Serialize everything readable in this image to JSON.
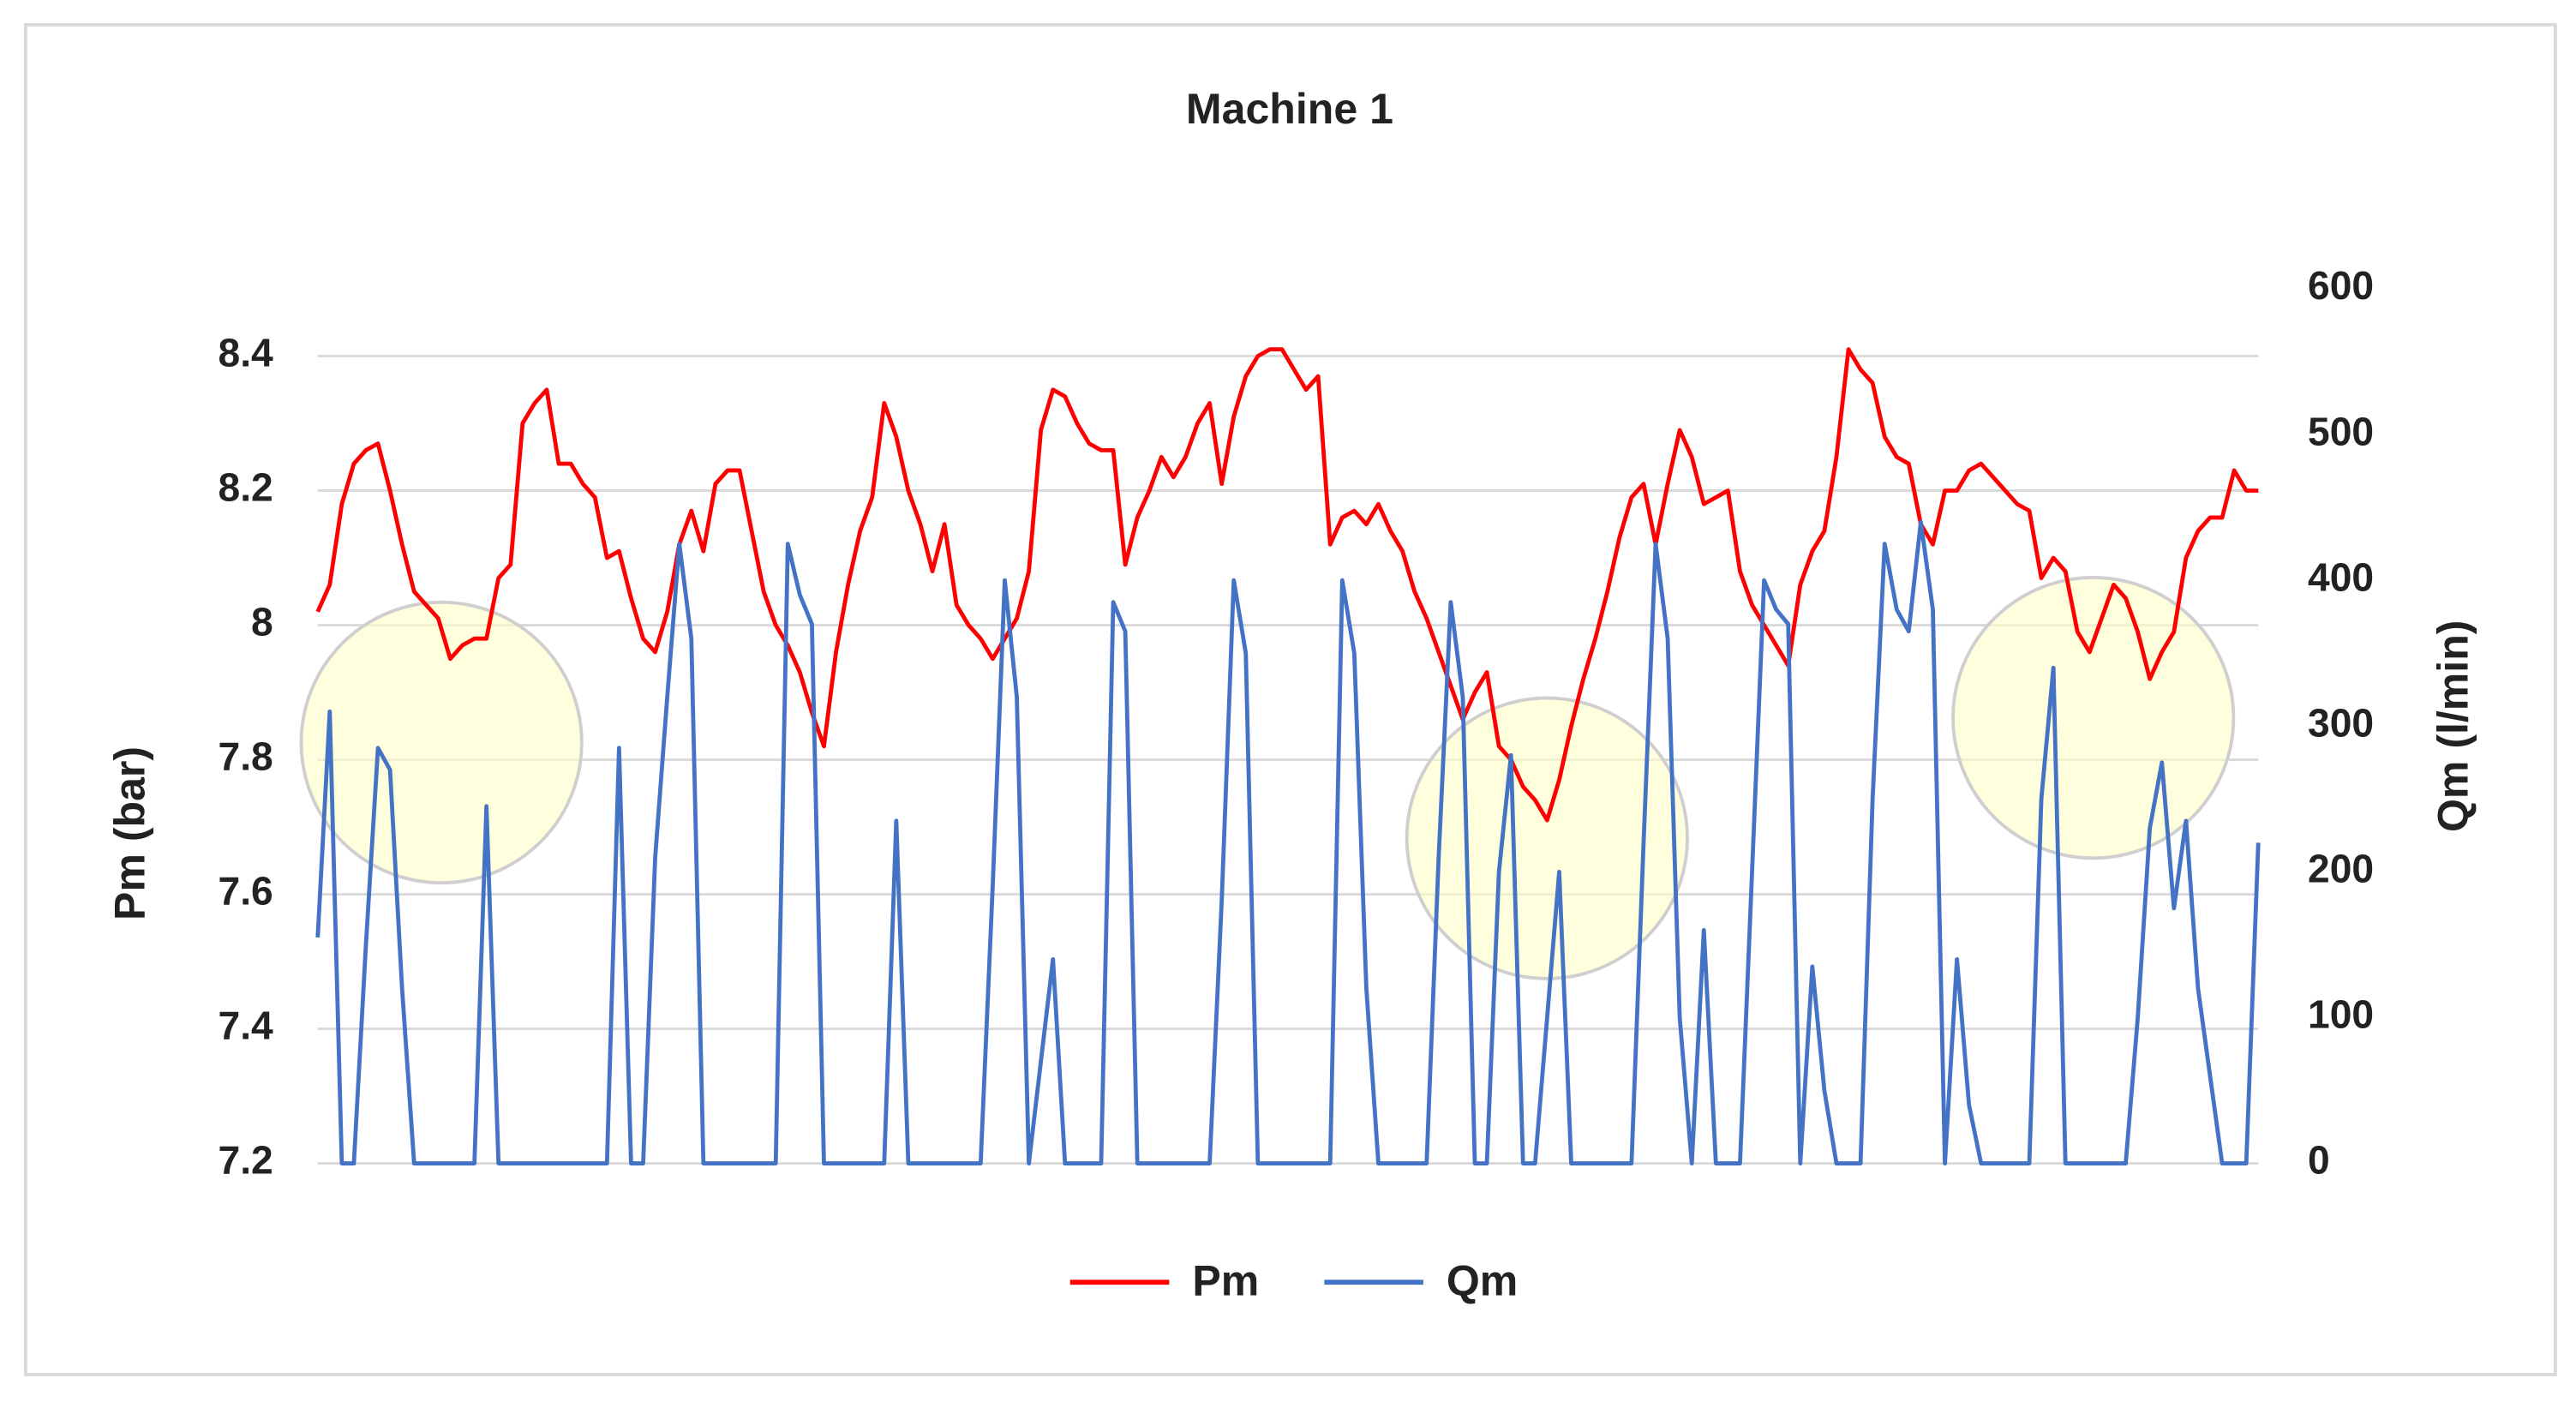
{
  "chart_data": {
    "type": "line",
    "title": "Machine 1",
    "ylabel": "Pm (bar)",
    "y2label": "Qm (l/min)",
    "ylim": [
      7.2,
      8.5
    ],
    "yticks": [
      7.2,
      7.4,
      7.6,
      7.8,
      8,
      8.2,
      8.4
    ],
    "y2lim": [
      0,
      600
    ],
    "y2ticks": [
      0,
      100,
      200,
      300,
      400,
      500,
      600
    ],
    "grid": true,
    "legend": "bottom",
    "series": [
      {
        "name": "Pm",
        "color": "#ff0000",
        "values": [
          8.02,
          8.06,
          8.18,
          8.24,
          8.26,
          8.27,
          8.2,
          8.12,
          8.05,
          8.03,
          8.01,
          7.95,
          7.97,
          7.98,
          7.98,
          8.07,
          8.09,
          8.3,
          8.33,
          8.35,
          8.24,
          8.24,
          8.21,
          8.19,
          8.1,
          8.11,
          8.04,
          7.98,
          7.96,
          8.02,
          8.12,
          8.17,
          8.11,
          8.21,
          8.23,
          8.23,
          8.14,
          8.05,
          8.0,
          7.97,
          7.93,
          7.87,
          7.82,
          7.96,
          8.06,
          8.14,
          8.19,
          8.33,
          8.28,
          8.2,
          8.15,
          8.08,
          8.15,
          8.03,
          8.0,
          7.98,
          7.95,
          7.98,
          8.01,
          8.08,
          8.29,
          8.35,
          8.34,
          8.3,
          8.27,
          8.26,
          8.26,
          8.09,
          8.16,
          8.2,
          8.25,
          8.22,
          8.25,
          8.3,
          8.33,
          8.21,
          8.31,
          8.37,
          8.4,
          8.41,
          8.41,
          8.38,
          8.35,
          8.37,
          8.12,
          8.16,
          8.17,
          8.15,
          8.18,
          8.14,
          8.11,
          8.05,
          8.01,
          7.96,
          7.91,
          7.86,
          7.9,
          7.93,
          7.82,
          7.8,
          7.76,
          7.74,
          7.71,
          7.77,
          7.85,
          7.92,
          7.98,
          8.05,
          8.13,
          8.19,
          8.21,
          8.12,
          8.21,
          8.29,
          8.25,
          8.18,
          8.19,
          8.2,
          8.08,
          8.03,
          8.0,
          7.97,
          7.94,
          8.06,
          8.11,
          8.14,
          8.25,
          8.41,
          8.38,
          8.36,
          8.28,
          8.25,
          8.24,
          8.15,
          8.12,
          8.2,
          8.2,
          8.23,
          8.24,
          8.22,
          8.2,
          8.18,
          8.17,
          8.07,
          8.1,
          8.08,
          7.99,
          7.96,
          8.01,
          8.06,
          8.04,
          7.99,
          7.92,
          7.96,
          7.99,
          8.1,
          8.14,
          8.16,
          8.16,
          8.23,
          8.2,
          8.2
        ]
      },
      {
        "name": "Qm",
        "color": "#4472c4",
        "axis": "y2",
        "values": [
          155,
          310,
          0,
          0,
          150,
          285,
          270,
          120,
          0,
          0,
          0,
          0,
          0,
          0,
          245,
          0,
          0,
          0,
          0,
          0,
          0,
          0,
          0,
          0,
          0,
          285,
          0,
          0,
          210,
          320,
          425,
          360,
          0,
          0,
          0,
          0,
          0,
          0,
          0,
          425,
          390,
          370,
          0,
          0,
          0,
          0,
          0,
          0,
          235,
          0,
          0,
          0,
          0,
          0,
          0,
          0,
          190,
          400,
          320,
          0,
          70,
          140,
          0,
          0,
          0,
          0,
          385,
          365,
          0,
          0,
          0,
          0,
          0,
          0,
          0,
          180,
          400,
          350,
          0,
          0,
          0,
          0,
          0,
          0,
          0,
          400,
          350,
          120,
          0,
          0,
          0,
          0,
          0,
          210,
          385,
          320,
          0,
          0,
          200,
          280,
          0,
          0,
          100,
          200,
          0,
          0,
          0,
          0,
          0,
          0,
          220,
          425,
          360,
          100,
          0,
          160,
          0,
          0,
          0,
          200,
          400,
          380,
          370,
          0,
          135,
          50,
          0,
          0,
          0,
          250,
          425,
          380,
          365,
          440,
          380,
          0,
          140,
          40,
          0,
          0,
          0,
          0,
          0,
          250,
          340,
          0,
          0,
          0,
          0,
          0,
          0,
          100,
          230,
          275,
          175,
          235,
          120,
          60,
          0,
          0,
          0,
          220
        ]
      }
    ]
  }
}
